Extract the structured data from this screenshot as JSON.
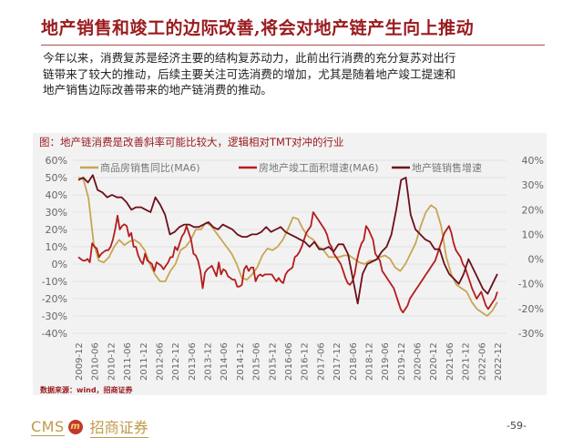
{
  "page": {
    "title": "地产销售和竣工的边际改善,将会对地产链产生向上推动",
    "paragraph_lines": [
      "今年以来，消费复苏是经济主要的结构复苏动力，此前出行消费的充分复苏对出行",
      "链带来了较大的推动，后续主要关注可选消费的增加，尤其是随着地产竣工提速和",
      "地产销售边际改善带来的地产链消费的推动。"
    ],
    "source": "数据来源：wind，招商证券",
    "footer": {
      "logo_text": "CMS",
      "logo_mark": "m",
      "company": "招商证券",
      "page_number": "-59-"
    }
  },
  "chart_data": {
    "type": "line",
    "title": "图：地产链消费是改善斜率可能比较大，逻辑相对TMT对冲的行业",
    "xlabel": "",
    "ylabel": "",
    "grid": true,
    "legend_position": "top",
    "x_tick_labels": [
      "2009-12",
      "2010-06",
      "2010-12",
      "2011-06",
      "2011-12",
      "2012-06",
      "2012-12",
      "2013-06",
      "2013-12",
      "2014-06",
      "2014-12",
      "2015-06",
      "2015-12",
      "2016-06",
      "2016-12",
      "2017-06",
      "2017-12",
      "2018-06",
      "2018-12",
      "2019-06",
      "2019-12",
      "2020-06",
      "2020-12",
      "2021-06",
      "2021-12",
      "2022-06",
      "2022-12"
    ],
    "left_axis": {
      "ticks": [
        "60%",
        "50%",
        "40%",
        "30%",
        "20%",
        "10%",
        "0%",
        "-10%",
        "-20%",
        "-30%",
        "-40%"
      ],
      "range": [
        -40,
        60
      ]
    },
    "right_axis": {
      "ticks": [
        "40%",
        "30%",
        "20%",
        "10%",
        "0%",
        "-10%",
        "-20%",
        "-30%"
      ],
      "range": [
        -30,
        40
      ]
    },
    "series": [
      {
        "name": "商品房销售同比(MA6)",
        "axis": "left",
        "color": "#c8a552",
        "x_step": 0.5,
        "values": [
          50,
          49,
          38,
          12,
          2,
          1,
          4,
          10,
          14,
          11,
          13,
          14,
          12,
          8,
          0,
          -6,
          -10,
          -10,
          -4,
          0,
          8,
          10,
          14,
          20,
          20,
          24,
          22,
          18,
          14,
          10,
          6,
          0,
          -8,
          -9,
          -6,
          -2,
          5,
          9,
          8,
          10,
          14,
          20,
          27,
          26,
          20,
          16,
          14,
          10,
          8,
          4,
          4,
          4,
          5,
          5,
          3,
          1,
          0,
          2,
          2,
          4,
          5,
          3,
          -2,
          -4,
          0,
          6,
          12,
          22,
          30,
          34,
          32,
          22,
          4,
          -6,
          -12,
          -14,
          -16,
          -22,
          -26,
          -28,
          -30,
          -27,
          -22
        ]
      },
      {
        "name": "房地产竣工面积增速(MA6)",
        "axis": "left",
        "color": "#b51c1c",
        "x_step": 0.5,
        "values": [
          4,
          3,
          2,
          2,
          3,
          1,
          12,
          10,
          9,
          4,
          6,
          7,
          8,
          8,
          10,
          14,
          20,
          28,
          20,
          22,
          23,
          22,
          16,
          18,
          10,
          10,
          5,
          2,
          0,
          6,
          2,
          1,
          0,
          -4,
          1,
          0,
          -1,
          -3,
          -1,
          1,
          4,
          4,
          10,
          8,
          12,
          16,
          18,
          22,
          18,
          14,
          6,
          5,
          2,
          -4,
          -14,
          -5,
          -3,
          -2,
          -1,
          -4,
          -7,
          1,
          -6,
          -3,
          -4,
          -7,
          -8,
          -9,
          -9,
          -13,
          -13,
          -12,
          -3,
          -1,
          -4,
          -2,
          -2,
          -10,
          -7,
          -6,
          -7,
          -6,
          -6,
          -6,
          -6,
          -8,
          -10,
          -8,
          -10,
          -11,
          -6,
          -4,
          -3,
          -2,
          4,
          5,
          7,
          10,
          14,
          18,
          20,
          22,
          30,
          28,
          26,
          24,
          22,
          20,
          17,
          12,
          10,
          6,
          4,
          2,
          0,
          -4,
          -8,
          -11,
          -12,
          -10,
          -6,
          2,
          8,
          12,
          14,
          22,
          20,
          17,
          14,
          6,
          4,
          2,
          -4,
          -6,
          -8,
          -10,
          -12,
          -14,
          -18,
          -22,
          -26,
          -28,
          -26,
          -24,
          -20,
          -18,
          -16,
          -14,
          -12,
          -10,
          -8,
          -6,
          -4,
          -2,
          0,
          2,
          6,
          10,
          14,
          18,
          20,
          22,
          18,
          12,
          8,
          6,
          4,
          0,
          -2,
          -6,
          -10,
          -14,
          -17,
          -20,
          -18,
          -16,
          -20,
          -24,
          -26,
          -24,
          -22,
          -20,
          -16
        ]
      },
      {
        "name": "地产链销售增速",
        "axis": "right",
        "color": "#6b0f1a",
        "x_step": 0.5,
        "values": [
          32,
          33,
          31,
          34,
          28,
          27,
          25,
          26,
          25,
          25,
          23,
          20,
          21,
          21,
          20,
          19,
          25,
          22,
          18,
          10,
          11,
          13,
          14,
          14,
          13,
          13,
          14,
          15,
          13,
          12,
          14,
          13,
          12,
          10,
          9,
          9,
          10,
          10,
          11,
          13,
          11,
          12,
          13,
          11,
          10,
          9,
          8,
          7,
          5,
          7,
          4,
          4,
          5,
          3,
          6,
          6,
          2,
          -8,
          -18,
          -6,
          -2,
          -1,
          0,
          3,
          5,
          10,
          20,
          32,
          33,
          18,
          12,
          10,
          8,
          7,
          4,
          4,
          -2,
          -6,
          -8,
          -10,
          -6,
          0,
          -4,
          -8,
          -12,
          -14,
          -10,
          -6
        ]
      }
    ]
  }
}
